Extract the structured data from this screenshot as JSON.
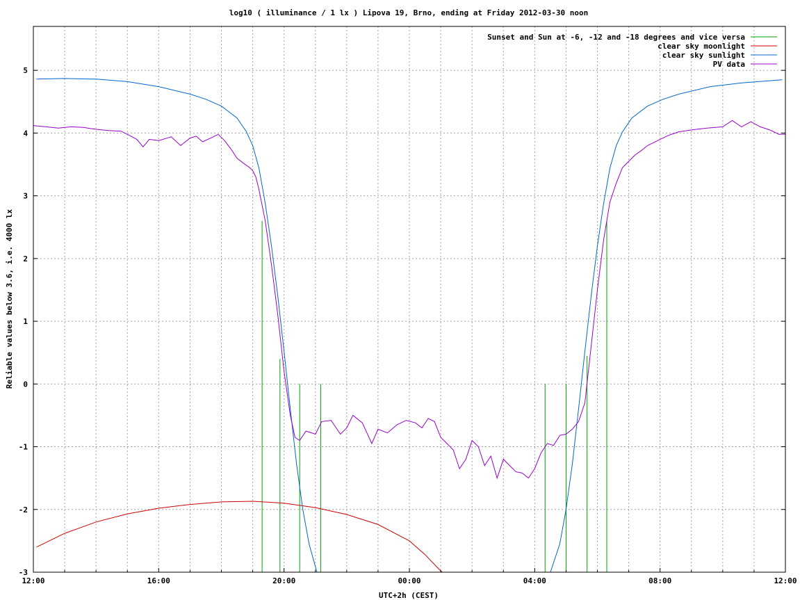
{
  "chart_data": {
    "type": "line",
    "title": "log10 ( illuminance / 1 lx ) Lipova 19, Brno, ending at Friday 2012-03-30 noon",
    "xlabel": "UTC+2h (CEST)",
    "ylabel": "Reliable values below 3.6, i.e. 4000 lx",
    "x_unit": "hours since 12:00 (UTC+2h)",
    "xlim": [
      0,
      24
    ],
    "ylim": [
      -3,
      5.7
    ],
    "xticks": [
      {
        "value": 0,
        "label": "12:00"
      },
      {
        "value": 4,
        "label": "16:00"
      },
      {
        "value": 8,
        "label": "20:00"
      },
      {
        "value": 12,
        "label": "00:00"
      },
      {
        "value": 16,
        "label": "04:00"
      },
      {
        "value": 20,
        "label": "08:00"
      },
      {
        "value": 24,
        "label": "12:00"
      }
    ],
    "yticks": [
      {
        "value": -3,
        "label": "-3"
      },
      {
        "value": -2,
        "label": "-2"
      },
      {
        "value": -1,
        "label": "-1"
      },
      {
        "value": 0,
        "label": "0"
      },
      {
        "value": 1,
        "label": "1"
      },
      {
        "value": 2,
        "label": "2"
      },
      {
        "value": 3,
        "label": "3"
      },
      {
        "value": 4,
        "label": "4"
      },
      {
        "value": 5,
        "label": "5"
      }
    ],
    "grid": true,
    "legend_position": "top-right",
    "series": [
      {
        "name": "Sunset and Sun at -6, -12 and -18 degrees and vice versa",
        "color": "#00a000",
        "style": "impulses",
        "points": [
          [
            7.3,
            2.6
          ],
          [
            7.87,
            0.4
          ],
          [
            8.5,
            0
          ],
          [
            9.17,
            0
          ],
          [
            16.33,
            0
          ],
          [
            17.0,
            0
          ],
          [
            17.67,
            0.45
          ],
          [
            18.3,
            2.6
          ]
        ]
      },
      {
        "name": "clear sky moonlight",
        "color": "#cc0000",
        "points": [
          [
            0.1,
            -2.6
          ],
          [
            1,
            -2.38
          ],
          [
            2,
            -2.2
          ],
          [
            3,
            -2.07
          ],
          [
            4,
            -1.98
          ],
          [
            5,
            -1.92
          ],
          [
            6,
            -1.88
          ],
          [
            7,
            -1.87
          ],
          [
            8,
            -1.9
          ],
          [
            9,
            -1.97
          ],
          [
            10,
            -2.08
          ],
          [
            11,
            -2.24
          ],
          [
            12,
            -2.5
          ],
          [
            12.5,
            -2.72
          ],
          [
            13.0,
            -2.98
          ],
          [
            13.05,
            -3.0
          ]
        ]
      },
      {
        "name": "clear sky sunlight",
        "color": "#0066cc",
        "points": [
          [
            0.1,
            4.86
          ],
          [
            1,
            4.87
          ],
          [
            2,
            4.86
          ],
          [
            3,
            4.82
          ],
          [
            4,
            4.74
          ],
          [
            5,
            4.62
          ],
          [
            5.5,
            4.54
          ],
          [
            6,
            4.43
          ],
          [
            6.5,
            4.24
          ],
          [
            6.8,
            4.02
          ],
          [
            7.0,
            3.8
          ],
          [
            7.2,
            3.44
          ],
          [
            7.4,
            2.88
          ],
          [
            7.6,
            2.2
          ],
          [
            7.8,
            1.4
          ],
          [
            8.0,
            0.52
          ],
          [
            8.2,
            -0.4
          ],
          [
            8.4,
            -1.28
          ],
          [
            8.6,
            -2.0
          ],
          [
            8.8,
            -2.55
          ],
          [
            9.05,
            -3.0
          ],
          [
            16.5,
            -3.0
          ],
          [
            16.8,
            -2.55
          ],
          [
            17.0,
            -2.0
          ],
          [
            17.2,
            -1.28
          ],
          [
            17.4,
            -0.4
          ],
          [
            17.6,
            0.52
          ],
          [
            17.8,
            1.4
          ],
          [
            18.0,
            2.2
          ],
          [
            18.2,
            2.88
          ],
          [
            18.4,
            3.44
          ],
          [
            18.6,
            3.8
          ],
          [
            18.8,
            4.02
          ],
          [
            19.1,
            4.24
          ],
          [
            19.6,
            4.43
          ],
          [
            20.1,
            4.54
          ],
          [
            20.6,
            4.62
          ],
          [
            21.6,
            4.74
          ],
          [
            22.6,
            4.8
          ],
          [
            23.9,
            4.85
          ]
        ]
      },
      {
        "name": "PV data",
        "color": "#9900cc",
        "points": [
          [
            0,
            4.12
          ],
          [
            0.4,
            4.1
          ],
          [
            0.8,
            4.08
          ],
          [
            1.2,
            4.1
          ],
          [
            1.6,
            4.09
          ],
          [
            2.0,
            4.06
          ],
          [
            2.4,
            4.04
          ],
          [
            2.8,
            4.03
          ],
          [
            3.0,
            3.98
          ],
          [
            3.3,
            3.9
          ],
          [
            3.5,
            3.78
          ],
          [
            3.7,
            3.9
          ],
          [
            4.0,
            3.88
          ],
          [
            4.4,
            3.94
          ],
          [
            4.7,
            3.8
          ],
          [
            5.0,
            3.92
          ],
          [
            5.2,
            3.95
          ],
          [
            5.4,
            3.86
          ],
          [
            5.7,
            3.93
          ],
          [
            5.9,
            3.98
          ],
          [
            6.1,
            3.88
          ],
          [
            6.3,
            3.75
          ],
          [
            6.5,
            3.6
          ],
          [
            6.7,
            3.52
          ],
          [
            6.9,
            3.45
          ],
          [
            7.0,
            3.4
          ],
          [
            7.1,
            3.3
          ],
          [
            7.2,
            3.1
          ],
          [
            7.4,
            2.6
          ],
          [
            7.6,
            1.9
          ],
          [
            7.8,
            1.1
          ],
          [
            8.0,
            0.2
          ],
          [
            8.2,
            -0.5
          ],
          [
            8.35,
            -0.85
          ],
          [
            8.5,
            -0.9
          ],
          [
            8.7,
            -0.75
          ],
          [
            9.0,
            -0.8
          ],
          [
            9.2,
            -0.6
          ],
          [
            9.5,
            -0.58
          ],
          [
            9.8,
            -0.8
          ],
          [
            10.0,
            -0.7
          ],
          [
            10.2,
            -0.5
          ],
          [
            10.5,
            -0.62
          ],
          [
            10.8,
            -0.95
          ],
          [
            11.0,
            -0.72
          ],
          [
            11.3,
            -0.78
          ],
          [
            11.6,
            -0.65
          ],
          [
            11.9,
            -0.58
          ],
          [
            12.2,
            -0.62
          ],
          [
            12.4,
            -0.7
          ],
          [
            12.6,
            -0.55
          ],
          [
            12.8,
            -0.6
          ],
          [
            13.0,
            -0.85
          ],
          [
            13.2,
            -0.95
          ],
          [
            13.4,
            -1.05
          ],
          [
            13.6,
            -1.35
          ],
          [
            13.8,
            -1.2
          ],
          [
            14.0,
            -0.9
          ],
          [
            14.2,
            -1.0
          ],
          [
            14.4,
            -1.3
          ],
          [
            14.6,
            -1.15
          ],
          [
            14.8,
            -1.5
          ],
          [
            15.0,
            -1.2
          ],
          [
            15.2,
            -1.3
          ],
          [
            15.4,
            -1.4
          ],
          [
            15.6,
            -1.42
          ],
          [
            15.8,
            -1.5
          ],
          [
            16.0,
            -1.35
          ],
          [
            16.2,
            -1.1
          ],
          [
            16.4,
            -0.95
          ],
          [
            16.6,
            -0.98
          ],
          [
            16.8,
            -0.82
          ],
          [
            17.0,
            -0.8
          ],
          [
            17.2,
            -0.72
          ],
          [
            17.4,
            -0.6
          ],
          [
            17.6,
            -0.3
          ],
          [
            17.8,
            0.6
          ],
          [
            18.0,
            1.5
          ],
          [
            18.2,
            2.3
          ],
          [
            18.4,
            2.9
          ],
          [
            18.6,
            3.2
          ],
          [
            18.8,
            3.45
          ],
          [
            19.0,
            3.55
          ],
          [
            19.2,
            3.65
          ],
          [
            19.4,
            3.72
          ],
          [
            19.6,
            3.8
          ],
          [
            19.8,
            3.85
          ],
          [
            20.0,
            3.9
          ],
          [
            20.3,
            3.97
          ],
          [
            20.6,
            4.02
          ],
          [
            21.0,
            4.05
          ],
          [
            21.5,
            4.08
          ],
          [
            22.0,
            4.1
          ],
          [
            22.3,
            4.2
          ],
          [
            22.6,
            4.1
          ],
          [
            22.9,
            4.18
          ],
          [
            23.2,
            4.1
          ],
          [
            23.5,
            4.05
          ],
          [
            23.8,
            3.98
          ],
          [
            24.0,
            3.98
          ]
        ]
      }
    ]
  }
}
